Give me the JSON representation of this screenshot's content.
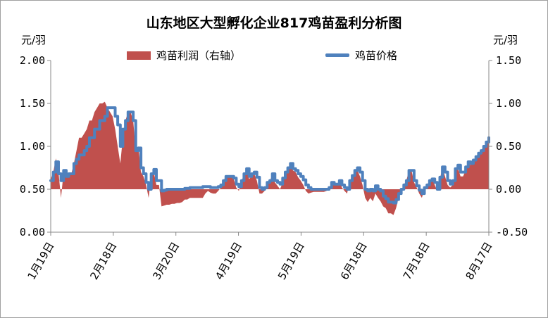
{
  "title": "山东地区大型孵化企业817鸡苗盈利分析图",
  "left_unit": "元/羽",
  "right_unit": "元/羽",
  "colors": {
    "profit": "#c0504d",
    "price": "#4f81bd",
    "axis": "#888888"
  },
  "chart_data": {
    "type": "area+line",
    "legend": [
      "鸡苗利润（右轴）",
      "鸡苗价格"
    ],
    "legend_position": "top",
    "grid": false,
    "left_axis": {
      "ylim": [
        0,
        2
      ],
      "ticks": [
        "0.00",
        "0.50",
        "1.00",
        "1.50",
        "2.00"
      ]
    },
    "right_axis": {
      "ylim": [
        -0.5,
        1.5
      ],
      "ticks": [
        "-0.50",
        "0.00",
        "0.50",
        "1.00",
        "1.50"
      ]
    },
    "x_ticks": [
      "1月19日",
      "2月18日",
      "3月20日",
      "4月19日",
      "5月19日",
      "6月18日",
      "7月18日",
      "8月17日"
    ],
    "series": [
      {
        "name": "鸡苗价格",
        "axis": "left",
        "style": "line",
        "values": [
          0.6,
          0.7,
          0.82,
          0.68,
          0.6,
          0.72,
          0.65,
          0.68,
          0.68,
          0.8,
          0.85,
          0.9,
          0.9,
          0.95,
          1.0,
          1.1,
          1.1,
          1.2,
          1.2,
          1.3,
          1.3,
          1.35,
          1.45,
          1.45,
          1.45,
          1.35,
          1.25,
          1.0,
          1.2,
          1.3,
          1.4,
          1.4,
          1.3,
          0.95,
          0.98,
          0.75,
          0.68,
          0.58,
          0.5,
          0.68,
          0.73,
          0.6,
          0.6,
          0.48,
          0.49,
          0.5,
          0.5,
          0.5,
          0.5,
          0.5,
          0.5,
          0.5,
          0.51,
          0.51,
          0.52,
          0.52,
          0.52,
          0.52,
          0.52,
          0.53,
          0.53,
          0.53,
          0.52,
          0.52,
          0.52,
          0.53,
          0.55,
          0.6,
          0.65,
          0.65,
          0.65,
          0.63,
          0.56,
          0.53,
          0.6,
          0.68,
          0.74,
          0.65,
          0.68,
          0.7,
          0.64,
          0.52,
          0.5,
          0.52,
          0.58,
          0.6,
          0.68,
          0.6,
          0.58,
          0.56,
          0.63,
          0.7,
          0.75,
          0.8,
          0.74,
          0.72,
          0.68,
          0.65,
          0.61,
          0.55,
          0.52,
          0.5,
          0.5,
          0.5,
          0.5,
          0.5,
          0.5,
          0.5,
          0.52,
          0.58,
          0.56,
          0.56,
          0.6,
          0.55,
          0.52,
          0.5,
          0.6,
          0.66,
          0.72,
          0.75,
          0.7,
          0.6,
          0.5,
          0.48,
          0.5,
          0.48,
          0.54,
          0.5,
          0.48,
          0.42,
          0.39,
          0.35,
          0.35,
          0.34,
          0.38,
          0.45,
          0.5,
          0.55,
          0.6,
          0.72,
          0.72,
          0.6,
          0.54,
          0.49,
          0.45,
          0.52,
          0.55,
          0.6,
          0.62,
          0.58,
          0.5,
          0.64,
          0.76,
          0.7,
          0.6,
          0.56,
          0.6,
          0.74,
          0.78,
          0.7,
          0.7,
          0.76,
          0.82,
          0.8,
          0.84,
          0.88,
          0.92,
          0.95,
          1.0,
          1.05,
          1.1
        ]
      },
      {
        "name": "鸡苗利润（右轴）",
        "axis": "right",
        "style": "area",
        "values": [
          0.12,
          0.2,
          0.36,
          0.2,
          -0.1,
          0.2,
          0.15,
          0.18,
          0.18,
          0.3,
          0.45,
          0.6,
          0.6,
          0.65,
          0.7,
          0.8,
          0.8,
          0.9,
          0.95,
          1.0,
          1.0,
          1.02,
          0.95,
          0.9,
          0.85,
          0.7,
          0.5,
          0.3,
          0.6,
          0.8,
          0.9,
          0.9,
          0.8,
          0.45,
          0.5,
          0.2,
          0.15,
          0.05,
          -0.1,
          0.15,
          0.2,
          0.05,
          0.05,
          -0.2,
          -0.19,
          -0.18,
          -0.18,
          -0.17,
          -0.17,
          -0.16,
          -0.16,
          -0.15,
          -0.12,
          -0.12,
          -0.1,
          -0.1,
          -0.1,
          -0.1,
          -0.1,
          -0.1,
          -0.05,
          -0.02,
          -0.04,
          -0.05,
          -0.05,
          -0.02,
          0.02,
          0.1,
          0.15,
          0.15,
          0.15,
          0.12,
          0.02,
          -0.02,
          0.1,
          0.16,
          0.22,
          0.12,
          0.15,
          0.18,
          0.1,
          -0.05,
          -0.05,
          -0.02,
          0.06,
          0.1,
          0.16,
          0.08,
          0.04,
          0.0,
          0.08,
          0.18,
          0.24,
          0.28,
          0.22,
          0.2,
          0.14,
          0.1,
          0.05,
          -0.02,
          -0.05,
          -0.04,
          -0.03,
          -0.03,
          -0.03,
          -0.03,
          -0.03,
          -0.02,
          0.0,
          0.08,
          0.05,
          0.05,
          0.1,
          0.02,
          -0.02,
          -0.05,
          0.1,
          0.15,
          0.2,
          0.22,
          0.15,
          0.05,
          -0.1,
          -0.15,
          -0.1,
          -0.14,
          -0.05,
          -0.1,
          -0.14,
          -0.2,
          -0.22,
          -0.28,
          -0.28,
          -0.3,
          -0.22,
          -0.1,
          -0.02,
          0.05,
          0.1,
          0.22,
          0.22,
          0.08,
          0.02,
          -0.05,
          -0.1,
          0.0,
          0.05,
          0.1,
          0.12,
          0.05,
          -0.02,
          0.12,
          0.25,
          0.15,
          0.05,
          0.02,
          0.05,
          0.2,
          0.25,
          0.15,
          0.15,
          0.22,
          0.3,
          0.28,
          0.33,
          0.38,
          0.42,
          0.45,
          0.5,
          0.52,
          0.55
        ]
      }
    ]
  }
}
